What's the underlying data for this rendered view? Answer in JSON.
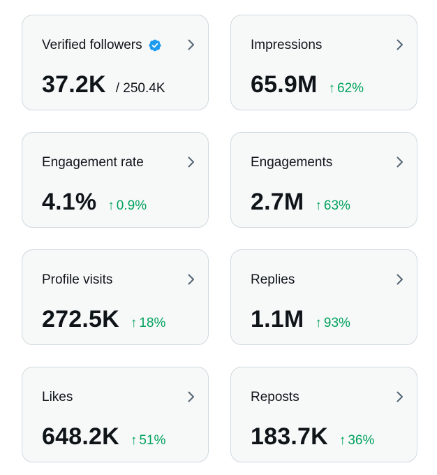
{
  "colors": {
    "card_bg": "#f7f9f9",
    "card_border": "#cfd9de",
    "text_primary": "#0f1419",
    "positive": "#00a15c",
    "verified_badge": "#1d9bf0",
    "chevron": "#536471"
  },
  "cards": [
    {
      "label": "Verified followers",
      "value": "37.2K",
      "sub": "/ 250.4K",
      "verified_icon": "verified-badge-icon",
      "icon": "chevron-right-icon"
    },
    {
      "label": "Impressions",
      "value": "65.9M",
      "delta_arrow": "↑",
      "delta": "62%",
      "icon": "chevron-right-icon"
    },
    {
      "label": "Engagement rate",
      "value": "4.1%",
      "delta_arrow": "↑",
      "delta": "0.9%",
      "icon": "chevron-right-icon"
    },
    {
      "label": "Engagements",
      "value": "2.7M",
      "delta_arrow": "↑",
      "delta": "63%",
      "icon": "chevron-right-icon"
    },
    {
      "label": "Profile visits",
      "value": "272.5K",
      "delta_arrow": "↑",
      "delta": "18%",
      "icon": "chevron-right-icon"
    },
    {
      "label": "Replies",
      "value": "1.1M",
      "delta_arrow": "↑",
      "delta": "93%",
      "icon": "chevron-right-icon"
    },
    {
      "label": "Likes",
      "value": "648.2K",
      "delta_arrow": "↑",
      "delta": "51%",
      "icon": "chevron-right-icon"
    },
    {
      "label": "Reposts",
      "value": "183.7K",
      "delta_arrow": "↑",
      "delta": "36%",
      "icon": "chevron-right-icon"
    }
  ]
}
